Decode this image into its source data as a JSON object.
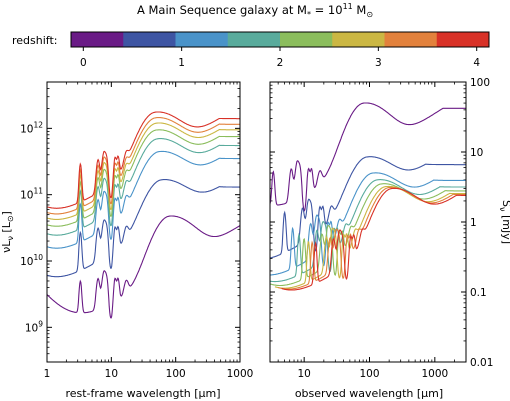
{
  "chart_data": {
    "type": "line",
    "title": {
      "main": "A Main Sequence galaxy at M",
      "sub": "*",
      "mid": " = 10",
      "sup": "11",
      "tail": " M",
      "solar": "⊙"
    },
    "colorbar": {
      "label": "redshift:",
      "ticks": [
        "0",
        "1",
        "2",
        "3",
        "4"
      ],
      "tick_values": [
        0,
        1,
        2,
        3,
        4
      ],
      "range": [
        -0.125,
        4.125
      ],
      "colors": [
        "#6a1b86",
        "#3e55a3",
        "#4a93c9",
        "#59ab9c",
        "#8bbd5c",
        "#cbb743",
        "#e2813c",
        "#d83127"
      ]
    },
    "left_panel": {
      "xscale": "log",
      "yscale": "log",
      "xlim": [
        1,
        1000
      ],
      "ylim": [
        300000000.0,
        5000000000000.0
      ],
      "x_ticks": [
        {
          "v": 1,
          "t": "1"
        },
        {
          "v": 10,
          "t": "10"
        },
        {
          "v": 100,
          "t": "100"
        },
        {
          "v": 1000,
          "t": "1000"
        }
      ],
      "y_ticks": [
        {
          "v": 1000000000.0,
          "b": "10",
          "e": "9"
        },
        {
          "v": 10000000000.0,
          "b": "10",
          "e": "10"
        },
        {
          "v": 100000000000.0,
          "b": "10",
          "e": "11"
        },
        {
          "v": 1000000000000.0,
          "b": "10",
          "e": "12"
        }
      ],
      "xlabel": {
        "pre": "rest-frame wavelength [",
        "mu": "μ",
        "post": "m]"
      },
      "ylabel": {
        "a": "ν",
        "b": "L",
        "c": "ν",
        "d": " [L",
        "e": "⊙",
        "f": "]"
      },
      "peak_luminosities": [
        40000000000.0,
        130000000000.0,
        350000000000.0,
        550000000000.0,
        750000000000.0,
        950000000000.0,
        1150000000000.0,
        1400000000000.0
      ],
      "peak_wavelengths_um": [
        80,
        60,
        55,
        52,
        50,
        50,
        49,
        48
      ]
    },
    "right_panel": {
      "xscale": "log",
      "yscale": "log",
      "xlim": [
        3,
        3000
      ],
      "ylim": [
        0.01,
        100
      ],
      "x_ticks": [
        {
          "v": 10,
          "t": "10"
        },
        {
          "v": 100,
          "t": "100"
        },
        {
          "v": 1000,
          "t": "1000"
        }
      ],
      "y_ticks": [
        {
          "v": 100,
          "t": "100"
        },
        {
          "v": 10,
          "t": "10"
        },
        {
          "v": 1,
          "t": "1"
        },
        {
          "v": 0.1,
          "t": "0.1"
        },
        {
          "v": 0.01,
          "t": "0.01"
        }
      ],
      "xlabel": {
        "pre": "observed wavelength [",
        "mu": "μ",
        "post": "m]"
      },
      "ylabel": {
        "a": "S",
        "b": "ν",
        "c": " [mJy]"
      },
      "peak_flux_mjy": [
        50,
        8.5,
        5,
        4,
        3.5,
        3.2,
        3.1,
        3.0
      ],
      "peak_wavelengths_um": [
        110,
        120,
        150,
        180,
        210,
        240,
        270,
        300
      ]
    }
  }
}
